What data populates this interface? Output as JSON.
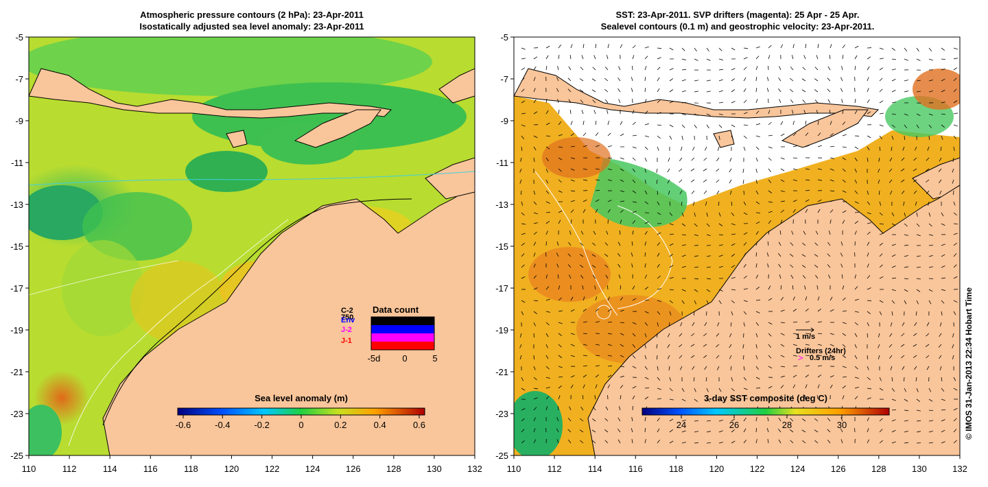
{
  "left_panel": {
    "title_line1": "Atmospheric pressure contours (2 hPa): 23-Apr-2011",
    "title_line2": "Isostatically adjusted sea level anomaly: 23-Apr-2011",
    "colorbar_title": "Sea level anomaly (m)",
    "colorbar_ticks": [
      "-0.6",
      "-0.4",
      "-0.2",
      "0",
      "0.2",
      "0.4",
      "0.6"
    ],
    "data_count": {
      "title": "Data count",
      "labels": [
        "C-2",
        "750",
        "Env",
        "J-2",
        "J-1"
      ],
      "label_colors": [
        "#000000",
        "#000000",
        "#0000ff",
        "#ff00ff",
        "#ff0000"
      ],
      "axis_ticks": [
        "-5d",
        "0",
        "5"
      ]
    }
  },
  "right_panel": {
    "title_line1": "SST: 23-Apr-2011. SVP drifters (magenta): 25 Apr - 25 Apr.",
    "title_line2": "Sealevel contours (0.1 m) and geostrophic velocity: 23-Apr-2011.",
    "colorbar_title": "3-day SST composite (deg C)",
    "colorbar_ticks": [
      "24",
      "26",
      "28",
      "30"
    ],
    "scale_label": "1 m/s",
    "drifters_label": "Drifters (24hr)",
    "drifters_speed": "0.5 m/s",
    "drifter_glyph": ">"
  },
  "axes": {
    "x_ticks": [
      "110",
      "112",
      "114",
      "116",
      "118",
      "120",
      "122",
      "124",
      "126",
      "128",
      "130",
      "132"
    ],
    "y_ticks": [
      "-5",
      "-7",
      "-9",
      "-11",
      "-13",
      "-15",
      "-17",
      "-19",
      "-21",
      "-23",
      "-25"
    ]
  },
  "credit": "© IMOS 31-Jan-2013 22:34 Hobart Time",
  "colors": {
    "land": "#f9c59a",
    "ocean_green": "#4cc84c",
    "ocean_yellow": "#e8e020",
    "sst_orange": "#f09a20"
  }
}
